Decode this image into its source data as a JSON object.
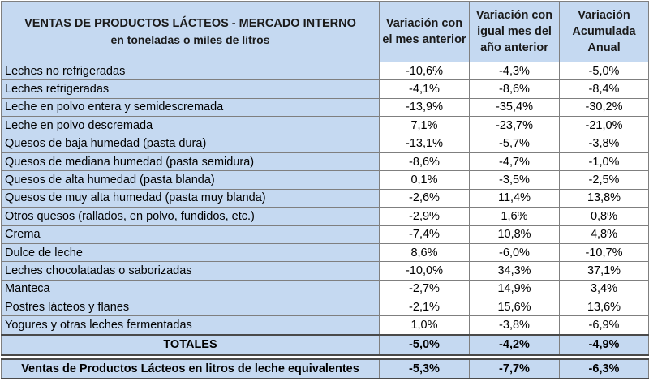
{
  "header": {
    "title_line1": "VENTAS DE PRODUCTOS LÁCTEOS - MERCADO INTERNO",
    "title_line2": "en toneladas o miles de litros",
    "col1": "Variación con el mes anterior",
    "col2": "Variación con igual mes del año anterior",
    "col3": "Variación Acumulada Anual"
  },
  "rows": [
    {
      "label": "Leches no refrigeradas",
      "v1": "-10,6%",
      "v2": "-4,3%",
      "v3": "-5,0%"
    },
    {
      "label": "Leches refrigeradas",
      "v1": "-4,1%",
      "v2": "-8,6%",
      "v3": "-8,4%"
    },
    {
      "label": "Leche en polvo entera y semidescremada",
      "v1": "-13,9%",
      "v2": "-35,4%",
      "v3": "-30,2%"
    },
    {
      "label": "Leche en polvo descremada",
      "v1": "7,1%",
      "v2": "-23,7%",
      "v3": "-21,0%"
    },
    {
      "label": "Quesos de baja humedad (pasta dura)",
      "v1": "-13,1%",
      "v2": "-5,7%",
      "v3": "-3,8%"
    },
    {
      "label": "Quesos de mediana humedad (pasta semidura)",
      "v1": "-8,6%",
      "v2": "-4,7%",
      "v3": "-1,0%"
    },
    {
      "label": "Quesos de alta humedad (pasta blanda)",
      "v1": "0,1%",
      "v2": "-3,5%",
      "v3": "-2,5%"
    },
    {
      "label": "Quesos de muy alta humedad (pasta muy blanda)",
      "v1": "-2,6%",
      "v2": "11,4%",
      "v3": "13,8%"
    },
    {
      "label": "Otros quesos (rallados, en polvo, fundidos, etc.)",
      "v1": "-2,9%",
      "v2": "1,6%",
      "v3": "0,8%"
    },
    {
      "label": "Crema",
      "v1": "-7,4%",
      "v2": "10,8%",
      "v3": "4,8%"
    },
    {
      "label": "Dulce de leche",
      "v1": "8,6%",
      "v2": "-6,0%",
      "v3": "-10,7%"
    },
    {
      "label": "Leches chocolatadas o saborizadas",
      "v1": "-10,0%",
      "v2": "34,3%",
      "v3": "37,1%"
    },
    {
      "label": "Manteca",
      "v1": "-2,7%",
      "v2": "14,9%",
      "v3": "3,4%"
    },
    {
      "label": "Postres lácteos y flanes",
      "v1": "-2,1%",
      "v2": "15,6%",
      "v3": "13,6%"
    },
    {
      "label": "Yogures y otras leches fermentadas",
      "v1": "1,0%",
      "v2": "-3,8%",
      "v3": "-6,9%"
    }
  ],
  "totals": {
    "label": "TOTALES",
    "v1": "-5,0%",
    "v2": "-4,2%",
    "v3": "-4,9%"
  },
  "equivalent": {
    "label": "Ventas de Productos Lácteos en litros de leche equivalentes",
    "v1": "-5,3%",
    "v2": "-7,7%",
    "v3": "-6,3%"
  }
}
